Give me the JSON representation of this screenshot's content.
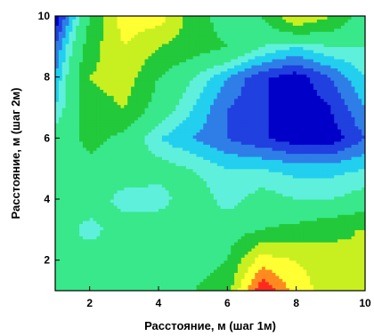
{
  "chart_data": {
    "type": "heatmap",
    "subtype": "filled-contour",
    "title": "",
    "xlabel": "Расстояние, м (шаг 1м)",
    "ylabel": "Расстояние, м (шаг 2м)",
    "xlim": [
      1,
      10
    ],
    "ylim": [
      1,
      10
    ],
    "x_ticks": [
      2,
      4,
      6,
      8,
      10
    ],
    "y_ticks": [
      2,
      4,
      6,
      8,
      10
    ],
    "x": [
      1,
      2,
      3,
      4,
      5,
      6,
      7,
      8,
      9,
      10
    ],
    "y": [
      1,
      2,
      3,
      4,
      5,
      6,
      7,
      8,
      9,
      10
    ],
    "z": [
      [
        4.0,
        4.0,
        4.0,
        4.0,
        4.5,
        5.0,
        9.5,
        7.0,
        6.0,
        5.5
      ],
      [
        4.0,
        4.0,
        4.0,
        4.0,
        4.0,
        4.5,
        7.0,
        6.5,
        6.0,
        5.5
      ],
      [
        4.0,
        3.2,
        4.0,
        4.0,
        4.0,
        4.0,
        4.5,
        4.8,
        5.2,
        5.6
      ],
      [
        4.0,
        4.0,
        3.2,
        3.2,
        4.0,
        3.2,
        3.8,
        3.5,
        3.5,
        3.8
      ],
      [
        3.8,
        4.2,
        4.0,
        3.8,
        3.5,
        3.0,
        3.0,
        2.8,
        2.8,
        3.0
      ],
      [
        3.8,
        4.8,
        4.2,
        3.0,
        2.5,
        2.0,
        1.6,
        1.2,
        1.2,
        2.0
      ],
      [
        3.0,
        5.0,
        5.5,
        4.0,
        3.0,
        2.0,
        1.6,
        1.0,
        1.5,
        2.5
      ],
      [
        2.5,
        5.5,
        6.0,
        4.5,
        3.5,
        2.5,
        1.6,
        1.2,
        2.0,
        3.0
      ],
      [
        2.0,
        5.0,
        6.5,
        5.5,
        5.0,
        4.5,
        3.5,
        3.0,
        3.5,
        3.5
      ],
      [
        1.0,
        4.5,
        7.0,
        7.0,
        5.0,
        4.0,
        4.5,
        6.5,
        5.5,
        4.0
      ]
    ],
    "levels": [
      0.5,
      1.5,
      2.0,
      2.5,
      3.0,
      3.5,
      4.5,
      5.5,
      6.5,
      7.5,
      8.5,
      10.5
    ],
    "colors": [
      "#0000c8",
      "#2040e0",
      "#2f7ee8",
      "#22cfef",
      "#5ff0dc",
      "#38e88a",
      "#22c93a",
      "#c8f020",
      "#ffff33",
      "#ff8a1f",
      "#ff2a1f"
    ],
    "grid": false,
    "legend": "none"
  }
}
